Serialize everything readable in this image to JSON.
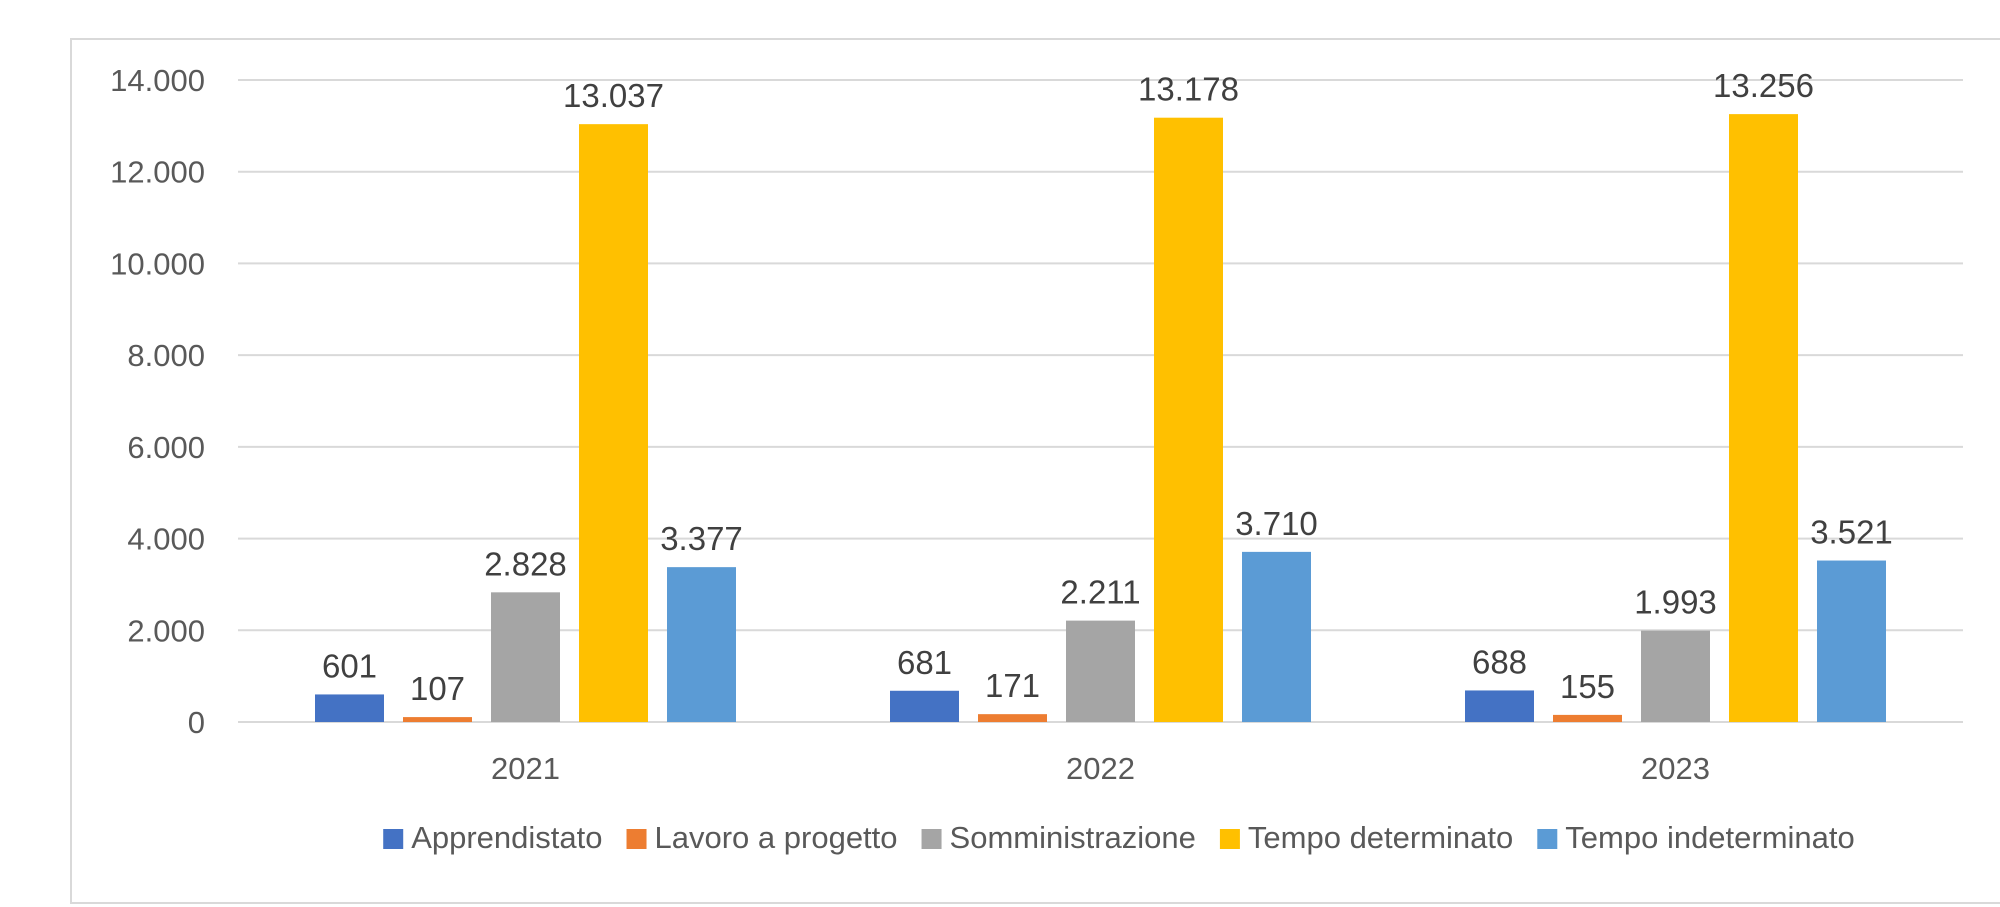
{
  "chart_data": {
    "type": "bar",
    "categories": [
      "2021",
      "2022",
      "2023"
    ],
    "series": [
      {
        "name": "Apprendistato",
        "color": "#4472c4",
        "values": [
          601,
          681,
          688
        ],
        "labels": [
          "601",
          "681",
          "688"
        ]
      },
      {
        "name": "Lavoro a progetto",
        "color": "#ed7d31",
        "values": [
          107,
          171,
          155
        ],
        "labels": [
          "107",
          "171",
          "155"
        ]
      },
      {
        "name": "Somministrazione",
        "color": "#a5a5a5",
        "values": [
          2828,
          2211,
          1993
        ],
        "labels": [
          "2.828",
          "2.211",
          "1.993"
        ]
      },
      {
        "name": "Tempo determinato",
        "color": "#ffc000",
        "values": [
          13037,
          13178,
          13256
        ],
        "labels": [
          "13.037",
          "13.178",
          "13.256"
        ]
      },
      {
        "name": "Tempo indeterminato",
        "color": "#5b9bd5",
        "values": [
          3377,
          3710,
          3521
        ],
        "labels": [
          "3.377",
          "3.710",
          "3.521"
        ]
      }
    ],
    "ylim": [
      0,
      14000
    ],
    "yticks": [
      0,
      2000,
      4000,
      6000,
      8000,
      10000,
      12000,
      14000
    ],
    "ytick_labels": [
      "0",
      "2.000",
      "4.000",
      "6.000",
      "8.000",
      "10.000",
      "12.000",
      "14.000"
    ],
    "grid": true,
    "legend_position": "bottom"
  }
}
